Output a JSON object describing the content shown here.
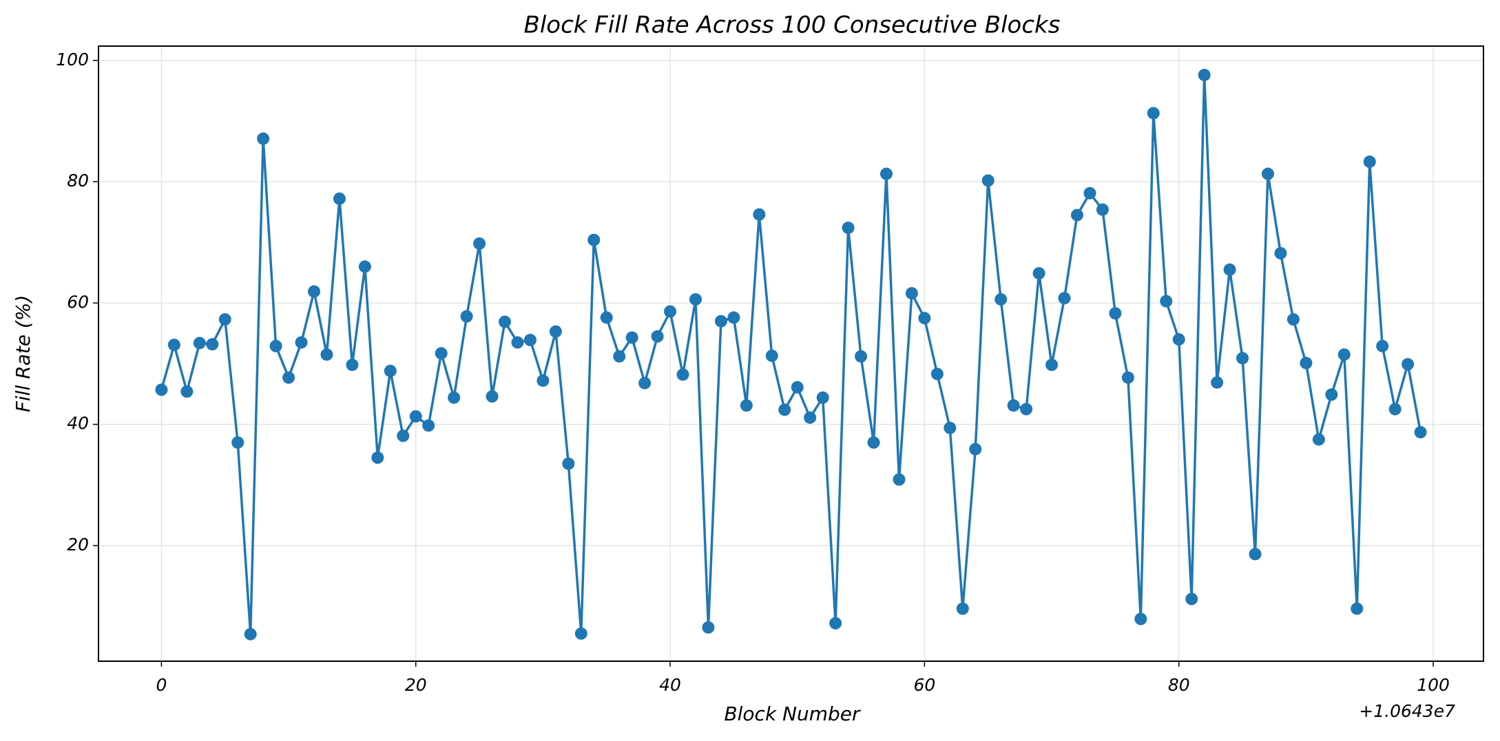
{
  "chart_data": {
    "type": "line",
    "title": "Block Fill Rate Across 100 Consecutive Blocks",
    "x_label": "Block Number",
    "y_label": "Fill Rate (%)",
    "x_offset_label": "+1.0643e7",
    "x": [
      0,
      1,
      2,
      3,
      4,
      5,
      6,
      7,
      8,
      9,
      10,
      11,
      12,
      13,
      14,
      15,
      16,
      17,
      18,
      19,
      20,
      21,
      22,
      23,
      24,
      25,
      26,
      27,
      28,
      29,
      30,
      31,
      32,
      33,
      34,
      35,
      36,
      37,
      38,
      39,
      40,
      41,
      42,
      43,
      44,
      45,
      46,
      47,
      48,
      49,
      50,
      51,
      52,
      53,
      54,
      55,
      56,
      57,
      58,
      59,
      60,
      61,
      62,
      63,
      64,
      65,
      66,
      67,
      68,
      69,
      70,
      71,
      72,
      73,
      74,
      75,
      76,
      77,
      78,
      79,
      80,
      81,
      82,
      83,
      84,
      85,
      86,
      87,
      88,
      89,
      90,
      91,
      92,
      93,
      94,
      95,
      96,
      97,
      98,
      99
    ],
    "values": [
      45.7,
      53.1,
      45.4,
      53.4,
      53.2,
      57.3,
      37.0,
      5.4,
      87.1,
      52.9,
      47.7,
      53.5,
      61.9,
      51.5,
      77.2,
      49.8,
      66.0,
      34.5,
      48.8,
      38.1,
      41.3,
      39.8,
      51.7,
      44.4,
      57.8,
      69.8,
      44.6,
      56.9,
      53.5,
      53.9,
      47.2,
      55.3,
      33.5,
      5.5,
      70.4,
      57.6,
      51.2,
      54.3,
      46.8,
      54.5,
      58.6,
      48.2,
      60.6,
      6.5,
      57.0,
      57.6,
      43.1,
      74.6,
      51.3,
      42.4,
      46.1,
      41.1,
      44.4,
      7.2,
      72.4,
      51.2,
      37.0,
      81.3,
      30.9,
      61.6,
      57.5,
      48.3,
      39.4,
      9.6,
      35.9,
      80.2,
      60.6,
      43.1,
      42.5,
      64.9,
      49.8,
      60.8,
      74.5,
      78.1,
      75.4,
      58.3,
      47.7,
      7.9,
      91.3,
      60.3,
      54.0,
      11.2,
      97.6,
      46.9,
      65.5,
      50.9,
      18.6,
      81.3,
      68.2,
      57.3,
      50.1,
      37.5,
      44.9,
      51.5,
      9.6,
      83.3,
      52.9,
      42.5,
      49.9,
      38.7
    ],
    "color": "#1f77b4",
    "xlim": [
      -4.95,
      103.95
    ],
    "xticks": [
      0,
      20,
      40,
      60,
      80,
      100
    ],
    "ylim": [
      0.94,
      102.36
    ],
    "yticks": [
      20,
      40,
      60,
      80,
      100
    ],
    "grid": true
  }
}
